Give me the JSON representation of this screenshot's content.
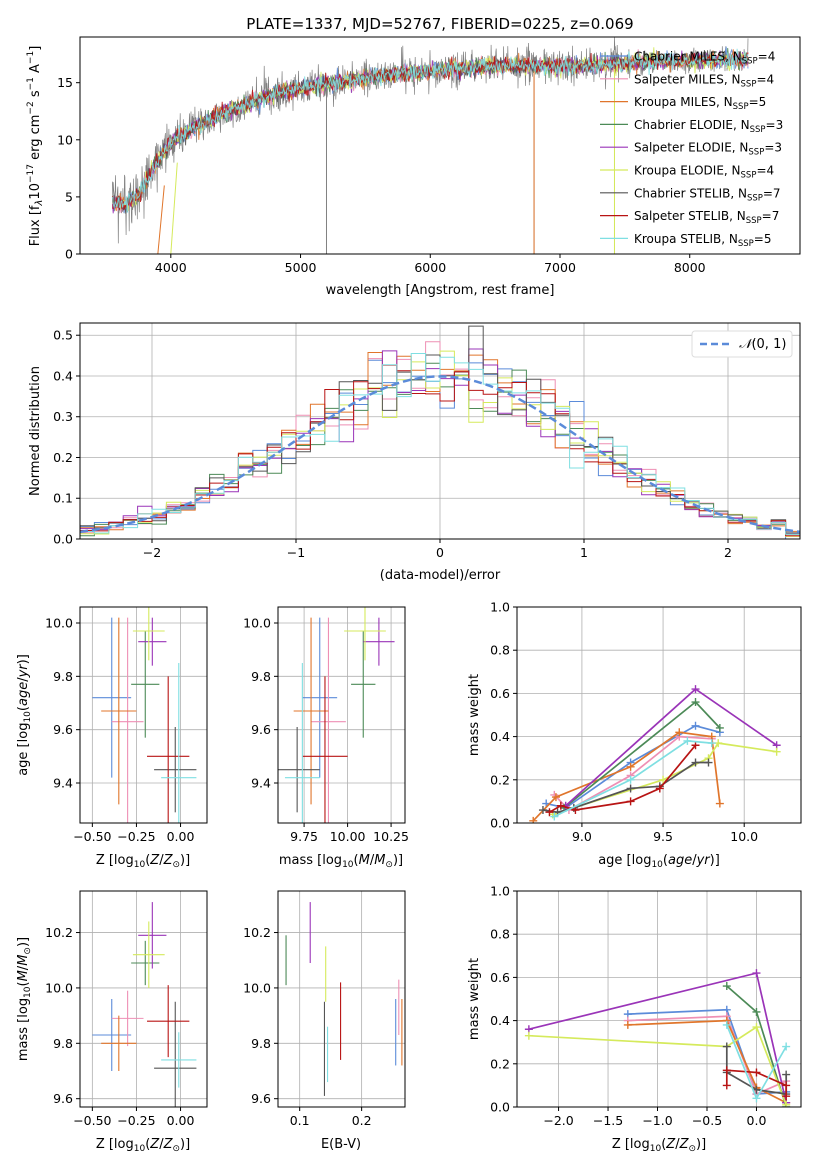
{
  "title": "PLATE=1337, MJD=52767, FIBERID=0225, z=0.069",
  "palette": {
    "Chabrier MILES": "#5b8bd9",
    "Salpeter MILES": "#ee8fb4",
    "Kroupa MILES": "#e0752b",
    "Chabrier ELODIE": "#4c8a57",
    "Salpeter ELODIE": "#9a34b8",
    "Kroupa ELODIE": "#d5ea5c",
    "Chabrier STELIB": "#555555",
    "Salpeter STELIB": "#b81414",
    "Kroupa STELIB": "#7fdfe2",
    "data": "#808080",
    "normal": "#5b8bd9",
    "grid": "#b0b0b0"
  },
  "chart_data": [
    {
      "id": "spectrum",
      "type": "line",
      "xlabel": "wavelength [Angstrom, rest frame]",
      "ylabel": "Flux [f_λ10^-17 erg cm^-2 s^-1 A^-1]",
      "xlim": [
        3300,
        8850
      ],
      "ylim": [
        0,
        19
      ],
      "xticks": [
        4000,
        5000,
        6000,
        7000,
        8000
      ],
      "yticks": [
        0,
        5,
        10,
        15
      ],
      "grid": false,
      "legend_position": "right",
      "legend": [
        "Chabrier MILES, N_SSP=4",
        "Salpeter MILES, N_SSP=4",
        "Kroupa MILES, N_SSP=5",
        "Chabrier ELODIE, N_SSP=3",
        "Salpeter ELODIE, N_SSP=3",
        "Kroupa ELODIE, N_SSP=4",
        "Chabrier STELIB, N_SSP=7",
        "Salpeter STELIB, N_SSP=7",
        "Kroupa STELIB, N_SSP=5"
      ],
      "continuum": {
        "x": [
          3550,
          3650,
          3750,
          3850,
          3950,
          4050,
          4200,
          4400,
          4600,
          4800,
          5000,
          5200,
          5400,
          5600,
          5800,
          6000,
          6200,
          6400,
          6600,
          6800,
          7000,
          7200,
          7400,
          7600,
          7800,
          8000,
          8200,
          8400
        ],
        "y": [
          4.5,
          4.3,
          5.2,
          7.3,
          9.0,
          10.2,
          11.2,
          12.3,
          13.2,
          14.0,
          14.5,
          14.9,
          15.2,
          15.6,
          15.8,
          16.0,
          16.2,
          16.4,
          16.5,
          16.5,
          16.4,
          16.5,
          16.6,
          16.8,
          16.9,
          16.9,
          17.0,
          17.0
        ]
      },
      "data_spikes": [
        {
          "x": 5200,
          "y": [
            0,
            15.2
          ]
        },
        {
          "x": 6800,
          "y": [
            0,
            16.2
          ]
        },
        {
          "x": 7420,
          "y": [
            0,
            16.4
          ]
        }
      ],
      "model_spikes": [
        {
          "x": 3900,
          "x2": 3950,
          "y": [
            0,
            6.0
          ]
        },
        {
          "x": 4000,
          "x2": 4050,
          "y": [
            0,
            8.0
          ]
        },
        {
          "x": 6800,
          "x2": 6800,
          "y": [
            0,
            16.0
          ]
        },
        {
          "x": 7420,
          "x2": 7420,
          "y": [
            0,
            16.2
          ]
        }
      ]
    },
    {
      "id": "residuals",
      "type": "step",
      "xlabel": "(data-model)/error",
      "ylabel": "Normed distribution",
      "xlim": [
        -2.5,
        2.5
      ],
      "ylim": [
        0,
        0.53
      ],
      "xticks": [
        -2,
        -1,
        0,
        1,
        2
      ],
      "yticks": [
        0.0,
        0.1,
        0.2,
        0.3,
        0.4,
        0.5
      ],
      "grid": true,
      "legend_position": "top-right",
      "normal_label": "N(0,1)",
      "bin_width": 0.1
    },
    {
      "id": "age_vs_Z",
      "type": "errorbar",
      "xlabel": "Z [log10(Z/Z_sun)]",
      "ylabel": "age [log10(age/yr)]",
      "xlim": [
        -0.57,
        0.15
      ],
      "ylim": [
        9.25,
        10.06
      ],
      "xticks": [
        -0.5,
        -0.25,
        0.0
      ],
      "yticks": [
        9.4,
        9.6,
        9.8,
        10.0
      ],
      "grid": true,
      "points": [
        {
          "model": "Chabrier MILES",
          "x": -0.39,
          "xerr": 0.11,
          "y": 9.72,
          "yerr": 0.3
        },
        {
          "model": "Salpeter MILES",
          "x": -0.3,
          "xerr": 0.09,
          "y": 9.63,
          "yerr": 0.39
        },
        {
          "model": "Kroupa MILES",
          "x": -0.35,
          "xerr": 0.1,
          "y": 9.67,
          "yerr": 0.35
        },
        {
          "model": "Chabrier ELODIE",
          "x": -0.2,
          "xerr": 0.08,
          "y": 9.77,
          "yerr": 0.2
        },
        {
          "model": "Salpeter ELODIE",
          "x": -0.16,
          "xerr": 0.08,
          "y": 9.93,
          "yerr": 0.09
        },
        {
          "model": "Kroupa ELODIE",
          "x": -0.18,
          "xerr": 0.09,
          "y": 9.97,
          "yerr": 0.11
        },
        {
          "model": "Chabrier STELIB",
          "x": -0.03,
          "xerr": 0.12,
          "y": 9.45,
          "yerr": 0.16
        },
        {
          "model": "Salpeter STELIB",
          "x": -0.07,
          "xerr": 0.12,
          "y": 9.5,
          "yerr": 0.3
        },
        {
          "model": "Kroupa STELIB",
          "x": -0.01,
          "xerr": 0.1,
          "y": 9.42,
          "yerr": 0.43
        }
      ]
    },
    {
      "id": "age_vs_mass",
      "type": "errorbar",
      "xlabel": "mass [log10(M/M_sun)]",
      "xlim": [
        9.6,
        10.33
      ],
      "ylim": [
        9.25,
        10.06
      ],
      "xticks": [
        9.75,
        10.0,
        10.25
      ],
      "yticks": [
        9.4,
        9.6,
        9.8,
        10.0
      ],
      "grid": true,
      "points": [
        {
          "model": "Chabrier MILES",
          "x": 9.84,
          "xerr": 0.1,
          "y": 9.72,
          "yerr": 0.3
        },
        {
          "model": "Salpeter MILES",
          "x": 9.89,
          "xerr": 0.1,
          "y": 9.63,
          "yerr": 0.39
        },
        {
          "model": "Kroupa MILES",
          "x": 9.79,
          "xerr": 0.1,
          "y": 9.67,
          "yerr": 0.35
        },
        {
          "model": "Chabrier ELODIE",
          "x": 10.09,
          "xerr": 0.07,
          "y": 9.77,
          "yerr": 0.2
        },
        {
          "model": "Salpeter ELODIE",
          "x": 10.18,
          "xerr": 0.09,
          "y": 9.93,
          "yerr": 0.09
        },
        {
          "model": "Kroupa ELODIE",
          "x": 10.1,
          "xerr": 0.12,
          "y": 9.97,
          "yerr": 0.11
        },
        {
          "model": "Chabrier STELIB",
          "x": 9.71,
          "xerr": 0.13,
          "y": 9.45,
          "yerr": 0.16
        },
        {
          "model": "Salpeter STELIB",
          "x": 9.87,
          "xerr": 0.13,
          "y": 9.5,
          "yerr": 0.3
        },
        {
          "model": "Kroupa STELIB",
          "x": 9.74,
          "xerr": 0.1,
          "y": 9.42,
          "yerr": 0.43
        }
      ]
    },
    {
      "id": "mass_weight_vs_age",
      "type": "line",
      "xlabel": "age [log10(age/yr)]",
      "ylabel": "mass weight",
      "xlim": [
        8.6,
        10.35
      ],
      "ylim": [
        0,
        1
      ],
      "xticks": [
        9.0,
        9.5,
        10.0
      ],
      "yticks": [
        0.0,
        0.2,
        0.4,
        0.6,
        0.8,
        1.0
      ],
      "grid": true,
      "series": [
        {
          "model": "Chabrier MILES",
          "x": [
            8.78,
            8.9,
            9.3,
            9.7,
            9.85
          ],
          "y": [
            0.09,
            0.07,
            0.28,
            0.45,
            0.42
          ]
        },
        {
          "model": "Salpeter MILES",
          "x": [
            8.83,
            8.92,
            9.3,
            9.6,
            9.8
          ],
          "y": [
            0.13,
            0.06,
            0.22,
            0.4,
            0.39
          ]
        },
        {
          "model": "Kroupa MILES",
          "x": [
            8.7,
            8.84,
            9.3,
            9.6,
            9.8,
            9.85
          ],
          "y": [
            0.01,
            0.12,
            0.26,
            0.42,
            0.4,
            0.09
          ]
        },
        {
          "model": "Chabrier ELODIE",
          "x": [
            8.89,
            9.7,
            9.85
          ],
          "y": [
            0.07,
            0.56,
            0.44
          ]
        },
        {
          "model": "Salpeter ELODIE",
          "x": [
            8.9,
            9.7,
            10.2
          ],
          "y": [
            0.08,
            0.62,
            0.36
          ]
        },
        {
          "model": "Kroupa ELODIE",
          "x": [
            8.82,
            9.5,
            9.78,
            9.84,
            10.2
          ],
          "y": [
            0.04,
            0.2,
            0.3,
            0.37,
            0.33
          ]
        },
        {
          "model": "Chabrier STELIB",
          "x": [
            8.76,
            8.85,
            8.95,
            9.3,
            9.48,
            9.7,
            9.78
          ],
          "y": [
            0.06,
            0.05,
            0.07,
            0.16,
            0.17,
            0.28,
            0.28
          ]
        },
        {
          "model": "Salpeter STELIB",
          "x": [
            8.8,
            8.87,
            8.96,
            9.3,
            9.48,
            9.7
          ],
          "y": [
            0.05,
            0.08,
            0.06,
            0.1,
            0.16,
            0.36
          ]
        },
        {
          "model": "Kroupa STELIB",
          "x": [
            8.83,
            9.3,
            9.65,
            9.8
          ],
          "y": [
            0.03,
            0.2,
            0.38,
            0.37
          ]
        }
      ]
    },
    {
      "id": "mass_vs_Z",
      "type": "errorbar",
      "xlabel": "Z [log10(Z/Z_sun)]",
      "ylabel": "mass [log10(M/M_sun)]",
      "xlim": [
        -0.57,
        0.15
      ],
      "ylim": [
        9.57,
        10.35
      ],
      "xticks": [
        -0.5,
        -0.25,
        0.0
      ],
      "yticks": [
        9.6,
        9.8,
        10.0,
        10.2
      ],
      "grid": true,
      "points": [
        {
          "model": "Chabrier MILES",
          "x": -0.39,
          "xerr": 0.11,
          "y": 9.83,
          "yerr": 0.13
        },
        {
          "model": "Salpeter MILES",
          "x": -0.3,
          "xerr": 0.09,
          "y": 9.89,
          "yerr": 0.1
        },
        {
          "model": "Kroupa MILES",
          "x": -0.35,
          "xerr": 0.1,
          "y": 9.8,
          "yerr": 0.1
        },
        {
          "model": "Chabrier ELODIE",
          "x": -0.2,
          "xerr": 0.08,
          "y": 10.09,
          "yerr": 0.08
        },
        {
          "model": "Salpeter ELODIE",
          "x": -0.16,
          "xerr": 0.08,
          "y": 10.19,
          "yerr": 0.12
        },
        {
          "model": "Kroupa ELODIE",
          "x": -0.18,
          "xerr": 0.09,
          "y": 10.12,
          "yerr": 0.12
        },
        {
          "model": "Chabrier STELIB",
          "x": -0.03,
          "xerr": 0.12,
          "y": 9.71,
          "yerr": 0.24
        },
        {
          "model": "Salpeter STELIB",
          "x": -0.07,
          "xerr": 0.12,
          "y": 9.88,
          "yerr": 0.13
        },
        {
          "model": "Kroupa STELIB",
          "x": -0.01,
          "xerr": 0.1,
          "y": 9.74,
          "yerr": 0.1
        }
      ]
    },
    {
      "id": "mass_vs_ebv",
      "type": "errorbar",
      "xlabel": "E(B-V)",
      "xlim": [
        0.065,
        0.27
      ],
      "ylim": [
        9.57,
        10.35
      ],
      "xticks": [
        0.1,
        0.2
      ],
      "yticks": [
        9.6,
        9.8,
        10.0,
        10.2
      ],
      "grid": true,
      "points": [
        {
          "model": "Chabrier MILES",
          "x": 0.255,
          "xerr": 0,
          "y": 9.84,
          "yerr": 0.12
        },
        {
          "model": "Salpeter MILES",
          "x": 0.26,
          "xerr": 0,
          "y": 9.93,
          "yerr": 0.1
        },
        {
          "model": "Kroupa MILES",
          "x": 0.265,
          "xerr": 0,
          "y": 9.84,
          "yerr": 0.12
        },
        {
          "model": "Chabrier ELODIE",
          "x": 0.078,
          "xerr": 0,
          "y": 10.1,
          "yerr": 0.09
        },
        {
          "model": "Salpeter ELODIE",
          "x": 0.117,
          "xerr": 0,
          "y": 10.2,
          "yerr": 0.11
        },
        {
          "model": "Kroupa ELODIE",
          "x": 0.142,
          "xerr": 0,
          "y": 10.05,
          "yerr": 0.1
        },
        {
          "model": "Chabrier STELIB",
          "x": 0.14,
          "xerr": 0,
          "y": 9.78,
          "yerr": 0.17
        },
        {
          "model": "Salpeter STELIB",
          "x": 0.166,
          "xerr": 0,
          "y": 9.88,
          "yerr": 0.14
        },
        {
          "model": "Kroupa STELIB",
          "x": 0.145,
          "xerr": 0,
          "y": 9.76,
          "yerr": 0.1
        }
      ]
    },
    {
      "id": "mass_weight_vs_Z",
      "type": "line",
      "xlabel": "Z [log10(Z/Z_sun)]",
      "ylabel": "mass weight",
      "xlim": [
        -2.42,
        0.45
      ],
      "ylim": [
        0,
        1
      ],
      "xticks": [
        -2.0,
        -1.5,
        -1.0,
        -0.5,
        0.0
      ],
      "yticks": [
        0.0,
        0.2,
        0.4,
        0.6,
        0.8,
        1.0
      ],
      "grid": true,
      "series": [
        {
          "model": "Chabrier MILES",
          "x": [
            -1.3,
            -0.3,
            0.0,
            0.3
          ],
          "y": [
            0.43,
            0.45,
            0.06,
            0.07
          ]
        },
        {
          "model": "Salpeter MILES",
          "x": [
            -1.3,
            -0.3,
            0.0,
            0.3
          ],
          "y": [
            0.4,
            0.42,
            0.06,
            0.12
          ]
        },
        {
          "model": "Kroupa MILES",
          "x": [
            -1.3,
            -0.3,
            0.0,
            0.3
          ],
          "y": [
            0.38,
            0.4,
            0.09,
            0.02
          ]
        },
        {
          "model": "Chabrier ELODIE",
          "x": [
            -0.3,
            0.0,
            0.3
          ],
          "y": [
            0.56,
            0.44,
            0.0
          ]
        },
        {
          "model": "Salpeter ELODIE",
          "x": [
            -2.3,
            0.0,
            0.3
          ],
          "y": [
            0.36,
            0.62,
            0.02
          ]
        },
        {
          "model": "Kroupa ELODIE",
          "x": [
            -2.3,
            -0.3,
            0.0,
            0.3
          ],
          "y": [
            0.33,
            0.28,
            0.37,
            0.01
          ]
        },
        {
          "model": "Chabrier STELIB",
          "x": [
            -0.3,
            -0.3,
            0.0,
            0.3,
            0.3
          ],
          "y": [
            0.28,
            0.16,
            0.08,
            0.06,
            0.15
          ]
        },
        {
          "model": "Salpeter STELIB",
          "x": [
            -0.3,
            -0.3,
            0.0,
            0.3,
            0.3
          ],
          "y": [
            0.1,
            0.17,
            0.16,
            0.1,
            0.05
          ]
        },
        {
          "model": "Kroupa STELIB",
          "x": [
            -0.3,
            0.0,
            0.3
          ],
          "y": [
            0.38,
            0.04,
            0.28
          ]
        }
      ]
    }
  ]
}
